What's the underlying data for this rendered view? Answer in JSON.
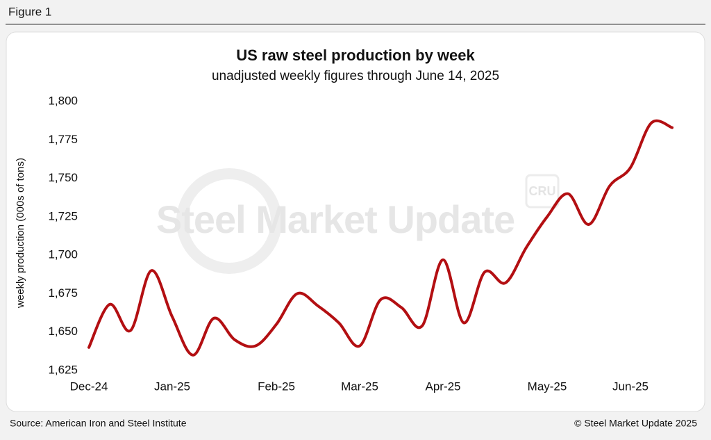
{
  "figure_label": "Figure 1",
  "source": "Source: American Iron and Steel Institute",
  "copyright": "© Steel Market Update 2025",
  "chart_data": {
    "type": "line",
    "title": "US raw steel production by week",
    "subtitle": "unadjusted weekly figures through June 14, 2025",
    "y_label": "weekly production (000s of tons)",
    "watermark": "Steel Market Update",
    "watermark_badge": "CRU",
    "categories": [
      "Dec-24",
      null,
      null,
      null,
      "Jan-25",
      null,
      null,
      null,
      null,
      "Feb-25",
      null,
      null,
      null,
      "Mar-25",
      null,
      null,
      null,
      "Apr-25",
      null,
      null,
      null,
      null,
      "May-25",
      null,
      null,
      null,
      "Jun-25",
      null,
      null
    ],
    "series": [
      {
        "name": "weekly production",
        "color": "#b30f12",
        "values": [
          1640,
          1668,
          1651,
          1690,
          1660,
          1635,
          1659,
          1645,
          1641,
          1655,
          1675,
          1667,
          1656,
          1641,
          1671,
          1666,
          1654,
          1697,
          1656,
          1689,
          1682,
          1705,
          1725,
          1740,
          1720,
          1745,
          1757,
          1786,
          1783
        ]
      }
    ],
    "ylim": [
      1625,
      1800
    ],
    "yticks": [
      {
        "value": 1625,
        "label": "1,625"
      },
      {
        "value": 1650,
        "label": "1,650"
      },
      {
        "value": 1675,
        "label": "1,675"
      },
      {
        "value": 1700,
        "label": "1,700"
      },
      {
        "value": 1725,
        "label": "1,725"
      },
      {
        "value": 1750,
        "label": "1,750"
      },
      {
        "value": 1775,
        "label": "1,775"
      },
      {
        "value": 1800,
        "label": "1,800"
      }
    ],
    "grid": false
  }
}
